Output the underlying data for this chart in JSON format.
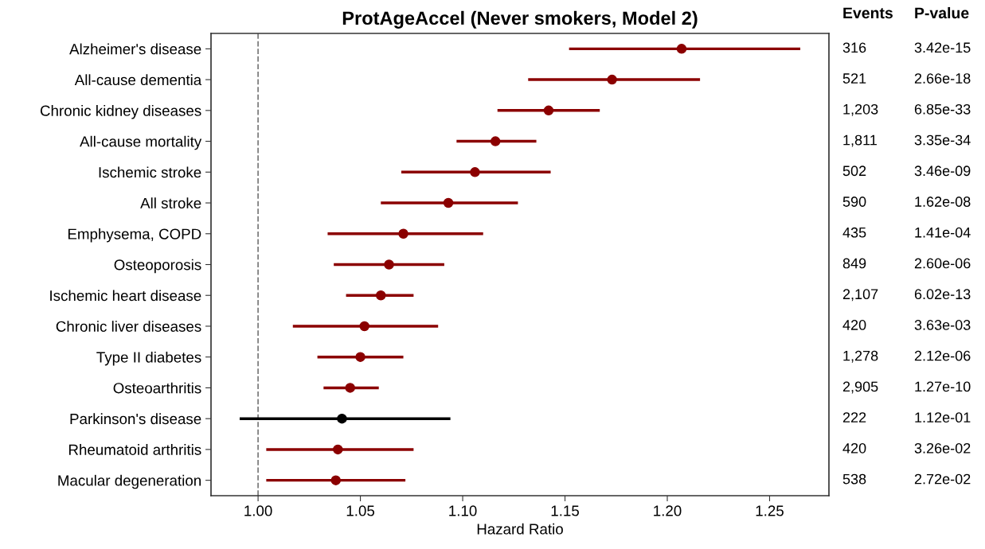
{
  "chart_data": {
    "type": "scatter",
    "orientation": "horizontal",
    "title": "ProtAgeAccel (Never smokers, Model 2)",
    "xlabel": "Hazard Ratio",
    "categories": [
      "Alzheimer's disease",
      "All-cause dementia",
      "Chronic kidney diseases",
      "All-cause mortality",
      "Ischemic stroke",
      "All stroke",
      "Emphysema, COPD",
      "Osteoporosis",
      "Ischemic heart disease",
      "Chronic liver diseases",
      "Type II diabetes",
      "Osteoarthritis",
      "Parkinson's disease",
      "Rheumatoid arthritis",
      "Macular degeneration"
    ],
    "series": [
      {
        "values": [
          1.207,
          1.173,
          1.142,
          1.116,
          1.106,
          1.093,
          1.071,
          1.064,
          1.06,
          1.052,
          1.05,
          1.045,
          1.041,
          1.039,
          1.038
        ],
        "errors": [
          [
            1.152,
            1.265
          ],
          [
            1.132,
            1.216
          ],
          [
            1.117,
            1.167
          ],
          [
            1.097,
            1.136
          ],
          [
            1.07,
            1.143
          ],
          [
            1.06,
            1.127
          ],
          [
            1.034,
            1.11
          ],
          [
            1.037,
            1.091
          ],
          [
            1.043,
            1.076
          ],
          [
            1.017,
            1.088
          ],
          [
            1.029,
            1.071
          ],
          [
            1.032,
            1.059
          ],
          [
            0.991,
            1.094
          ],
          [
            1.004,
            1.076
          ],
          [
            1.004,
            1.072
          ]
        ],
        "colors": [
          "#8b0000",
          "#8b0000",
          "#8b0000",
          "#8b0000",
          "#8b0000",
          "#8b0000",
          "#8b0000",
          "#8b0000",
          "#8b0000",
          "#8b0000",
          "#8b0000",
          "#8b0000",
          "#000000",
          "#8b0000",
          "#8b0000"
        ]
      }
    ],
    "xlim": [
      0.977,
      1.279
    ],
    "xticks": [
      {
        "value": 1.0,
        "label": "1.00"
      },
      {
        "value": 1.05,
        "label": "1.05"
      },
      {
        "value": 1.1,
        "label": "1.10"
      },
      {
        "value": 1.15,
        "label": "1.15"
      },
      {
        "value": 1.2,
        "label": "1.20"
      },
      {
        "value": 1.25,
        "label": "1.25"
      }
    ],
    "ref_lines": [
      {
        "axis": "x",
        "value": 1.0,
        "color": "#808080",
        "line_style": "dashed"
      }
    ],
    "marker": "circle",
    "grid": false,
    "legend": false,
    "annotations": [
      "Events",
      "P-value",
      "316",
      "3.42e-15",
      "521",
      "2.66e-18",
      "1,203",
      "6.85e-33",
      "1,811",
      "3.35e-34",
      "502",
      "3.46e-09",
      "590",
      "1.62e-08",
      "435",
      "1.41e-04",
      "849",
      "2.60e-06",
      "2,107",
      "6.02e-13",
      "420",
      "3.63e-03",
      "1,278",
      "2.12e-06",
      "2,905",
      "1.27e-10",
      "222",
      "1.12e-01",
      "420",
      "3.26e-02",
      "538",
      "2.72e-02"
    ]
  }
}
